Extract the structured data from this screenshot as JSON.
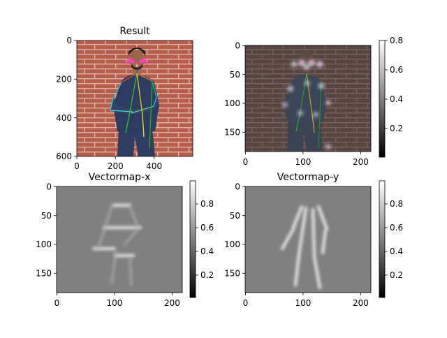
{
  "chart_data": [
    {
      "type": "image",
      "title": "Result",
      "content": "photo of a man in navy scrubs against a brick wall with pose skeleton overlay",
      "x_ticks": [
        0,
        200,
        400
      ],
      "y_ticks": [
        0,
        200,
        400,
        600
      ],
      "xlim": [
        0,
        600
      ],
      "ylim": [
        600,
        0
      ]
    },
    {
      "type": "heatmap",
      "title": "",
      "content": "darkened photo overlaid with keypoint heatmap blobs",
      "x_ticks": [
        0,
        100,
        200
      ],
      "y_ticks": [
        0,
        50,
        100,
        150
      ],
      "xlim": [
        0,
        218
      ],
      "ylim": [
        184,
        0
      ],
      "colorbar": {
        "ticks": [
          0.2,
          0.4,
          0.6,
          0.8
        ],
        "range": [
          0.0,
          0.8
        ],
        "colormap": "gray"
      }
    },
    {
      "type": "heatmap",
      "title": "Vectormap-x",
      "content": "grey field with bright horizontal limb segments",
      "x_ticks": [
        0,
        100,
        200
      ],
      "y_ticks": [
        0,
        50,
        100,
        150
      ],
      "xlim": [
        0,
        218
      ],
      "ylim": [
        184,
        0
      ],
      "colorbar": {
        "ticks": [
          0.2,
          0.4,
          0.6,
          0.8
        ],
        "range": [
          0.0,
          0.97
        ],
        "colormap": "gray"
      }
    },
    {
      "type": "heatmap",
      "title": "Vectormap-y",
      "content": "grey field with bright vertical limb segments",
      "x_ticks": [
        0,
        100,
        200
      ],
      "y_ticks": [
        0,
        50,
        100,
        150
      ],
      "xlim": [
        0,
        218
      ],
      "ylim": [
        184,
        0
      ],
      "colorbar": {
        "ticks": [
          0.2,
          0.4,
          0.6,
          0.8
        ],
        "range": [
          0.0,
          0.97
        ],
        "colormap": "gray"
      }
    }
  ]
}
